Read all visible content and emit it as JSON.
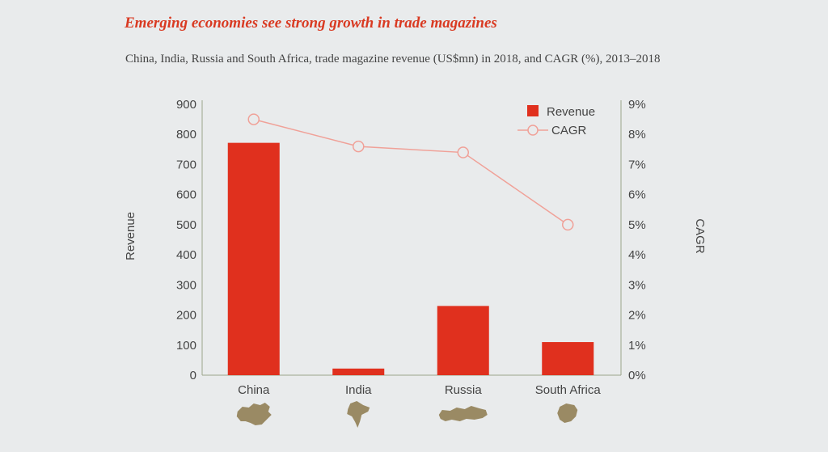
{
  "title": "Emerging economies see strong growth in trade magazines",
  "subtitle": "China, India, Russia and South Africa, trade magazine revenue (US$mn) in 2018, and CAGR (%), 2013–2018",
  "colors": {
    "bar": "#e0301e",
    "line": "#f0a198",
    "axis": "#9aa58a",
    "map_icon": "#9a8a64"
  },
  "chart_data": {
    "type": "bar",
    "categories": [
      "China",
      "India",
      "Russia",
      "South Africa"
    ],
    "series": [
      {
        "name": "Revenue",
        "type": "bar",
        "axis": "left",
        "values": [
          772,
          22,
          230,
          110
        ]
      },
      {
        "name": "CAGR",
        "type": "line",
        "axis": "right",
        "values": [
          8.5,
          7.6,
          7.4,
          5.0
        ]
      }
    ],
    "ylabel": "Revenue",
    "y2label": "CAGR",
    "ylim": [
      0,
      900
    ],
    "y2lim": [
      0,
      9
    ],
    "yticks": [
      "0",
      "100",
      "200",
      "300",
      "400",
      "500",
      "600",
      "700",
      "800",
      "900"
    ],
    "y2ticks": [
      "0%",
      "1%",
      "2%",
      "3%",
      "4%",
      "5%",
      "6%",
      "7%",
      "8%",
      "9%"
    ],
    "legend": [
      {
        "name": "Revenue",
        "marker": "square"
      },
      {
        "name": "CAGR",
        "marker": "circle-line"
      }
    ],
    "legend_position": "top-right",
    "category_icons": [
      "china-map-icon",
      "india-map-icon",
      "russia-map-icon",
      "south-africa-map-icon"
    ]
  }
}
